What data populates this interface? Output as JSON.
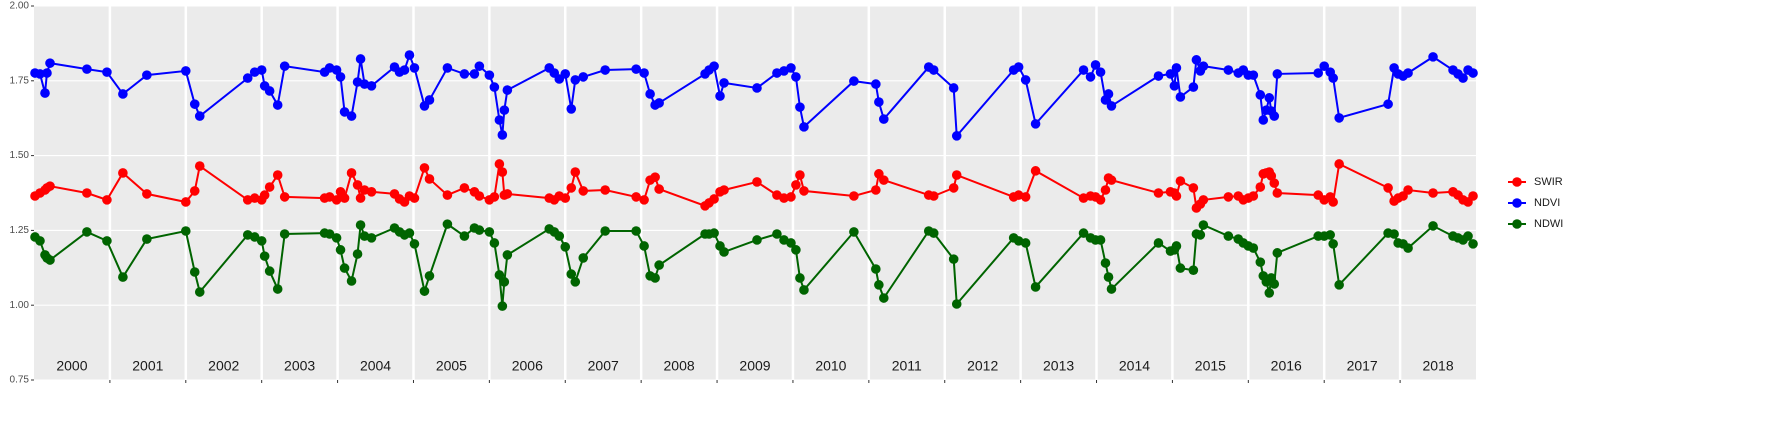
{
  "chart_data": {
    "type": "line",
    "x": [
      2000.013,
      2000.079,
      2000.145,
      2000.171,
      2000.211,
      2000.697,
      2000.961,
      2001.171,
      2001.487,
      2002.0,
      2002.118,
      2002.184,
      2002.816,
      2002.908,
      2003.0,
      2003.039,
      2003.105,
      2003.211,
      2003.303,
      2003.829,
      2003.895,
      2003.987,
      2004.039,
      2004.092,
      2004.184,
      2004.263,
      2004.303,
      2004.355,
      2004.447,
      2004.75,
      2004.816,
      2004.882,
      2004.947,
      2005.013,
      2005.145,
      2005.211,
      2005.447,
      2005.671,
      2005.803,
      2005.868,
      2006.0,
      2006.066,
      2006.132,
      2006.171,
      2006.197,
      2006.237,
      2006.789,
      2006.855,
      2006.921,
      2007.0,
      2007.079,
      2007.132,
      2007.237,
      2007.526,
      2007.934,
      2008.039,
      2008.118,
      2008.184,
      2008.237,
      2008.842,
      2008.895,
      2008.961,
      2009.039,
      2009.092,
      2009.526,
      2009.789,
      2009.882,
      2009.974,
      2010.039,
      2010.092,
      2010.145,
      2010.803,
      2011.092,
      2011.132,
      2011.197,
      2011.789,
      2011.855,
      2012.118,
      2012.158,
      2012.908,
      2012.974,
      2013.066,
      2013.197,
      2013.829,
      2013.921,
      2013.987,
      2014.053,
      2014.118,
      2014.158,
      2014.197,
      2014.816,
      2014.974,
      2015.026,
      2015.053,
      2015.105,
      2015.276,
      2015.316,
      2015.368,
      2015.408,
      2015.737,
      2015.868,
      2015.934,
      2016.0,
      2016.066,
      2016.158,
      2016.197,
      2016.237,
      2016.276,
      2016.303,
      2016.342,
      2016.382,
      2016.921,
      2017.0,
      2017.079,
      2017.118,
      2017.197,
      2017.842,
      2017.921,
      2017.974,
      2018.039,
      2018.105,
      2018.434,
      2018.697,
      2018.763,
      2018.829,
      2018.895,
      2018.961
    ],
    "series": [
      {
        "name": "SWIR",
        "color": "#ff0000",
        "values": [
          1.365,
          1.375,
          1.385,
          1.392,
          1.398,
          1.375,
          1.352,
          1.442,
          1.372,
          1.345,
          1.382,
          1.465,
          1.352,
          1.358,
          1.352,
          1.368,
          1.395,
          1.435,
          1.362,
          1.358,
          1.362,
          1.352,
          1.379,
          1.358,
          1.442,
          1.402,
          1.358,
          1.385,
          1.379,
          1.372,
          1.355,
          1.345,
          1.365,
          1.358,
          1.459,
          1.422,
          1.368,
          1.392,
          1.379,
          1.365,
          1.352,
          1.362,
          1.472,
          1.445,
          1.368,
          1.372,
          1.358,
          1.352,
          1.365,
          1.358,
          1.392,
          1.445,
          1.382,
          1.385,
          1.362,
          1.352,
          1.418,
          1.428,
          1.388,
          1.332,
          1.342,
          1.355,
          1.379,
          1.385,
          1.412,
          1.368,
          1.358,
          1.362,
          1.402,
          1.435,
          1.382,
          1.365,
          1.385,
          1.439,
          1.418,
          1.368,
          1.365,
          1.392,
          1.435,
          1.362,
          1.368,
          1.362,
          1.449,
          1.358,
          1.365,
          1.362,
          1.352,
          1.385,
          1.425,
          1.418,
          1.375,
          1.379,
          1.375,
          1.365,
          1.415,
          1.392,
          1.325,
          1.338,
          1.352,
          1.362,
          1.365,
          1.352,
          1.358,
          1.365,
          1.395,
          1.439,
          1.442,
          1.445,
          1.432,
          1.408,
          1.375,
          1.368,
          1.352,
          1.362,
          1.345,
          1.472,
          1.392,
          1.348,
          1.358,
          1.365,
          1.385,
          1.375,
          1.379,
          1.368,
          1.352,
          1.345,
          1.365
        ]
      },
      {
        "name": "NDVI",
        "color": "#0000ff",
        "values": [
          1.776,
          1.773,
          1.709,
          1.776,
          1.809,
          1.789,
          1.779,
          1.706,
          1.769,
          1.783,
          1.672,
          1.632,
          1.759,
          1.779,
          1.786,
          1.733,
          1.716,
          1.669,
          1.799,
          1.779,
          1.793,
          1.786,
          1.763,
          1.646,
          1.632,
          1.746,
          1.823,
          1.739,
          1.733,
          1.796,
          1.779,
          1.786,
          1.836,
          1.793,
          1.666,
          1.686,
          1.793,
          1.773,
          1.773,
          1.799,
          1.769,
          1.729,
          1.619,
          1.569,
          1.652,
          1.719,
          1.793,
          1.776,
          1.756,
          1.773,
          1.656,
          1.753,
          1.763,
          1.786,
          1.789,
          1.776,
          1.706,
          1.669,
          1.676,
          1.773,
          1.786,
          1.799,
          1.699,
          1.743,
          1.726,
          1.776,
          1.783,
          1.793,
          1.763,
          1.662,
          1.596,
          1.749,
          1.739,
          1.679,
          1.622,
          1.796,
          1.786,
          1.726,
          1.566,
          1.786,
          1.796,
          1.753,
          1.606,
          1.786,
          1.763,
          1.803,
          1.779,
          1.686,
          1.706,
          1.666,
          1.766,
          1.773,
          1.733,
          1.793,
          1.696,
          1.729,
          1.82,
          1.783,
          1.799,
          1.786,
          1.776,
          1.786,
          1.769,
          1.769,
          1.703,
          1.619,
          1.652,
          1.693,
          1.649,
          1.632,
          1.773,
          1.776,
          1.799,
          1.779,
          1.759,
          1.626,
          1.672,
          1.793,
          1.773,
          1.766,
          1.776,
          1.83,
          1.786,
          1.773,
          1.759,
          1.786,
          1.776
        ]
      },
      {
        "name": "NDWI",
        "color": "#006400",
        "values": [
          1.228,
          1.215,
          1.168,
          1.158,
          1.151,
          1.245,
          1.215,
          1.094,
          1.221,
          1.248,
          1.111,
          1.044,
          1.235,
          1.228,
          1.215,
          1.164,
          1.114,
          1.054,
          1.238,
          1.241,
          1.238,
          1.225,
          1.185,
          1.124,
          1.081,
          1.171,
          1.268,
          1.231,
          1.225,
          1.258,
          1.245,
          1.235,
          1.241,
          1.205,
          1.047,
          1.098,
          1.271,
          1.231,
          1.258,
          1.251,
          1.245,
          1.208,
          1.101,
          0.997,
          1.078,
          1.168,
          1.255,
          1.245,
          1.231,
          1.195,
          1.104,
          1.078,
          1.158,
          1.248,
          1.248,
          1.198,
          1.098,
          1.091,
          1.134,
          1.238,
          1.238,
          1.241,
          1.198,
          1.178,
          1.218,
          1.238,
          1.218,
          1.208,
          1.185,
          1.091,
          1.051,
          1.245,
          1.121,
          1.068,
          1.024,
          1.248,
          1.241,
          1.154,
          1.004,
          1.225,
          1.215,
          1.208,
          1.061,
          1.241,
          1.225,
          1.218,
          1.218,
          1.141,
          1.094,
          1.054,
          1.208,
          1.181,
          1.185,
          1.198,
          1.124,
          1.117,
          1.238,
          1.235,
          1.268,
          1.231,
          1.221,
          1.208,
          1.198,
          1.191,
          1.144,
          1.098,
          1.078,
          1.041,
          1.091,
          1.071,
          1.175,
          1.231,
          1.231,
          1.235,
          1.205,
          1.068,
          1.241,
          1.238,
          1.208,
          1.205,
          1.191,
          1.265,
          1.231,
          1.225,
          1.218,
          1.231,
          1.205
        ]
      }
    ],
    "xlim": [
      2000,
      2019
    ],
    "xticks": [
      {
        "value": 2000.5,
        "label": "2000"
      },
      {
        "value": 2001.5,
        "label": "2001"
      },
      {
        "value": 2002.5,
        "label": "2002"
      },
      {
        "value": 2003.5,
        "label": "2003"
      },
      {
        "value": 2004.5,
        "label": "2004"
      },
      {
        "value": 2005.5,
        "label": "2005"
      },
      {
        "value": 2006.5,
        "label": "2006"
      },
      {
        "value": 2007.5,
        "label": "2007"
      },
      {
        "value": 2008.5,
        "label": "2008"
      },
      {
        "value": 2009.5,
        "label": "2009"
      },
      {
        "value": 2010.5,
        "label": "2010"
      },
      {
        "value": 2011.5,
        "label": "2011"
      },
      {
        "value": 2012.5,
        "label": "2012"
      },
      {
        "value": 2013.5,
        "label": "2013"
      },
      {
        "value": 2014.5,
        "label": "2014"
      },
      {
        "value": 2015.5,
        "label": "2015"
      },
      {
        "value": 2016.5,
        "label": "2016"
      },
      {
        "value": 2017.5,
        "label": "2017"
      },
      {
        "value": 2018.5,
        "label": "2018"
      }
    ],
    "ylim": [
      0.75,
      2.0
    ],
    "yticks": [
      {
        "value": 0.75,
        "label": "0.75"
      },
      {
        "value": 1,
        "label": "1.00"
      },
      {
        "value": 1.25,
        "label": "1.25"
      },
      {
        "value": 1.5,
        "label": "1.50"
      },
      {
        "value": 1.75,
        "label": "1.75"
      },
      {
        "value": 2,
        "label": "2.00"
      }
    ],
    "grid": true,
    "legend": "right",
    "background": "#ebebeb"
  }
}
